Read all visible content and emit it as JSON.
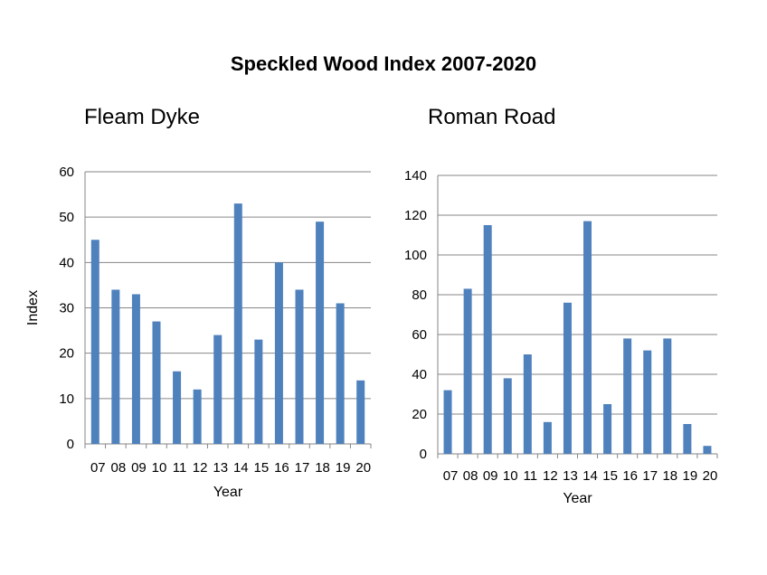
{
  "chart_data": {
    "title": "Speckled Wood Index 2007-2020",
    "charts": [
      {
        "type": "bar",
        "subtitle": "Fleam Dyke",
        "xlabel": "Year",
        "ylabel": "Index",
        "categories": [
          "07",
          "08",
          "09",
          "10",
          "11",
          "12",
          "13",
          "14",
          "15",
          "16",
          "17",
          "18",
          "19",
          "20"
        ],
        "values": [
          45,
          34,
          33,
          27,
          16,
          12,
          24,
          53,
          23,
          40,
          34,
          49,
          31,
          14
        ],
        "ylim": [
          0,
          60
        ],
        "yticks": [
          0,
          10,
          20,
          30,
          40,
          50,
          60
        ],
        "grid": true,
        "color": "#4f81bd"
      },
      {
        "type": "bar",
        "subtitle": "Roman Road",
        "xlabel": "Year",
        "ylabel": "",
        "categories": [
          "07",
          "08",
          "09",
          "10",
          "11",
          "12",
          "13",
          "14",
          "15",
          "16",
          "17",
          "18",
          "19",
          "20"
        ],
        "values": [
          32,
          83,
          115,
          38,
          50,
          16,
          76,
          117,
          25,
          58,
          52,
          58,
          15,
          4
        ],
        "ylim": [
          0,
          140
        ],
        "yticks": [
          0,
          20,
          40,
          60,
          80,
          100,
          120,
          140
        ],
        "grid": true,
        "color": "#4f81bd"
      }
    ]
  }
}
